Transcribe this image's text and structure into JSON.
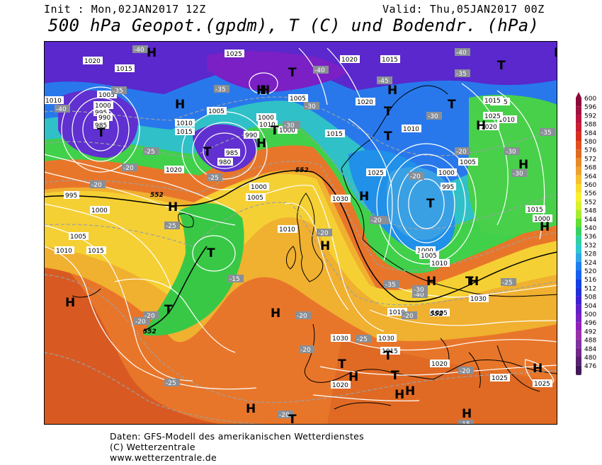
{
  "header": {
    "init": "Init : Mon,02JAN2017 12Z",
    "valid": "Valid: Thu,05JAN2017 00Z",
    "title": "500 hPa Geopot.(gpdm), T (C) und Bodendr. (hPa)"
  },
  "legend": {
    "levels": [
      "600",
      "596",
      "592",
      "588",
      "584",
      "580",
      "576",
      "572",
      "568",
      "564",
      "560",
      "556",
      "552",
      "548",
      "544",
      "540",
      "536",
      "532",
      "528",
      "524",
      "520",
      "516",
      "512",
      "508",
      "504",
      "500",
      "496",
      "492",
      "488",
      "484",
      "480",
      "476"
    ],
    "colors": [
      "#8b0a3a",
      "#a01040",
      "#b81440",
      "#c81e32",
      "#d83020",
      "#e05020",
      "#e06a20",
      "#e88a28",
      "#f0a030",
      "#f8c030",
      "#f8dc30",
      "#f8f030",
      "#d8f030",
      "#a8ec30",
      "#60e030",
      "#38d060",
      "#30d0a0",
      "#30c8d0",
      "#30a8e8",
      "#2080f0",
      "#1860f0",
      "#1040e0",
      "#2030d8",
      "#4020d0",
      "#6020c8",
      "#7820c0",
      "#9020b8",
      "#9830a8",
      "#8030a0",
      "#702888",
      "#582070",
      "#401858"
    ]
  },
  "centers": [
    {
      "label": "H",
      "id": "h1"
    },
    {
      "label": "H",
      "id": "h2"
    },
    {
      "label": "H",
      "id": "h3"
    },
    {
      "label": "H",
      "id": "h4"
    },
    {
      "label": "H",
      "id": "h5"
    },
    {
      "label": "H",
      "id": "h6"
    },
    {
      "label": "H",
      "id": "h7"
    },
    {
      "label": "H",
      "id": "h8"
    },
    {
      "label": "H",
      "id": "h9"
    },
    {
      "label": "H",
      "id": "h10"
    },
    {
      "label": "H",
      "id": "h11"
    },
    {
      "label": "H",
      "id": "h12"
    },
    {
      "label": "H",
      "id": "h13"
    },
    {
      "label": "H",
      "id": "h14"
    },
    {
      "label": "H",
      "id": "h15"
    },
    {
      "label": "H",
      "id": "h16"
    },
    {
      "label": "H",
      "id": "h17"
    },
    {
      "label": "H",
      "id": "h18"
    },
    {
      "label": "H",
      "id": "h19"
    },
    {
      "label": "H",
      "id": "h20"
    },
    {
      "label": "H",
      "id": "h21"
    },
    {
      "label": "H",
      "id": "h22"
    },
    {
      "label": "H",
      "id": "h23"
    },
    {
      "label": "T",
      "id": "t1"
    },
    {
      "label": "T",
      "id": "t2"
    },
    {
      "label": "T",
      "id": "t3"
    },
    {
      "label": "T",
      "id": "t4"
    },
    {
      "label": "T",
      "id": "t5"
    },
    {
      "label": "T",
      "id": "t6"
    },
    {
      "label": "T",
      "id": "t7"
    },
    {
      "label": "T",
      "id": "t8"
    },
    {
      "label": "T",
      "id": "t9"
    },
    {
      "label": "T",
      "id": "t10"
    },
    {
      "label": "T",
      "id": "t11"
    },
    {
      "label": "T",
      "id": "t12"
    },
    {
      "label": "T",
      "id": "t13"
    },
    {
      "label": "T",
      "id": "t14"
    },
    {
      "label": "T",
      "id": "t15"
    },
    {
      "label": "T",
      "id": "t16"
    }
  ],
  "pressure_labels": [
    "1020",
    "1015",
    "1010",
    "1005",
    "1000",
    "995",
    "990",
    "985",
    "1000",
    "1005",
    "1010",
    "1015",
    "1020",
    "1015",
    "1010",
    "1005",
    "1000",
    "995",
    "990",
    "985",
    "980",
    "1000",
    "1005",
    "1010",
    "1015",
    "1020",
    "1025",
    "1030",
    "1015",
    "1010",
    "1005",
    "1000",
    "995",
    "1000",
    "1005",
    "1010",
    "1015",
    "1020",
    "1025",
    "1030",
    "1030",
    "1025",
    "1020",
    "1015",
    "1010",
    "1005",
    "1000",
    "1010",
    "1015",
    "1020",
    "1025",
    "1030",
    "1010",
    "1005",
    "1000",
    "1015",
    "1020",
    "1025"
  ],
  "temp_labels": [
    "-40",
    "-40",
    "-35",
    "-30",
    "-25",
    "-20",
    "-20",
    "-20",
    "-25",
    "-30",
    "-35",
    "-40",
    "-45",
    "-40",
    "-35",
    "-30",
    "-25",
    "-20",
    "-20",
    "-20",
    "-25",
    "-30",
    "-35",
    "-30",
    "-25",
    "-20",
    "-15",
    "-20",
    "-25",
    "-20",
    "-35",
    "-40",
    "-25",
    "-30",
    "-20",
    "-20",
    "-20",
    "-15",
    "-20",
    "-25"
  ],
  "geopot_labels": [
    "552",
    "552",
    "552",
    "552"
  ],
  "footer": {
    "line1": "Daten: GFS-Modell des amerikanischen Wetterdienstes",
    "line2": "(C) Wetterzentrale",
    "line3": "www.wetterzentrale.de"
  }
}
